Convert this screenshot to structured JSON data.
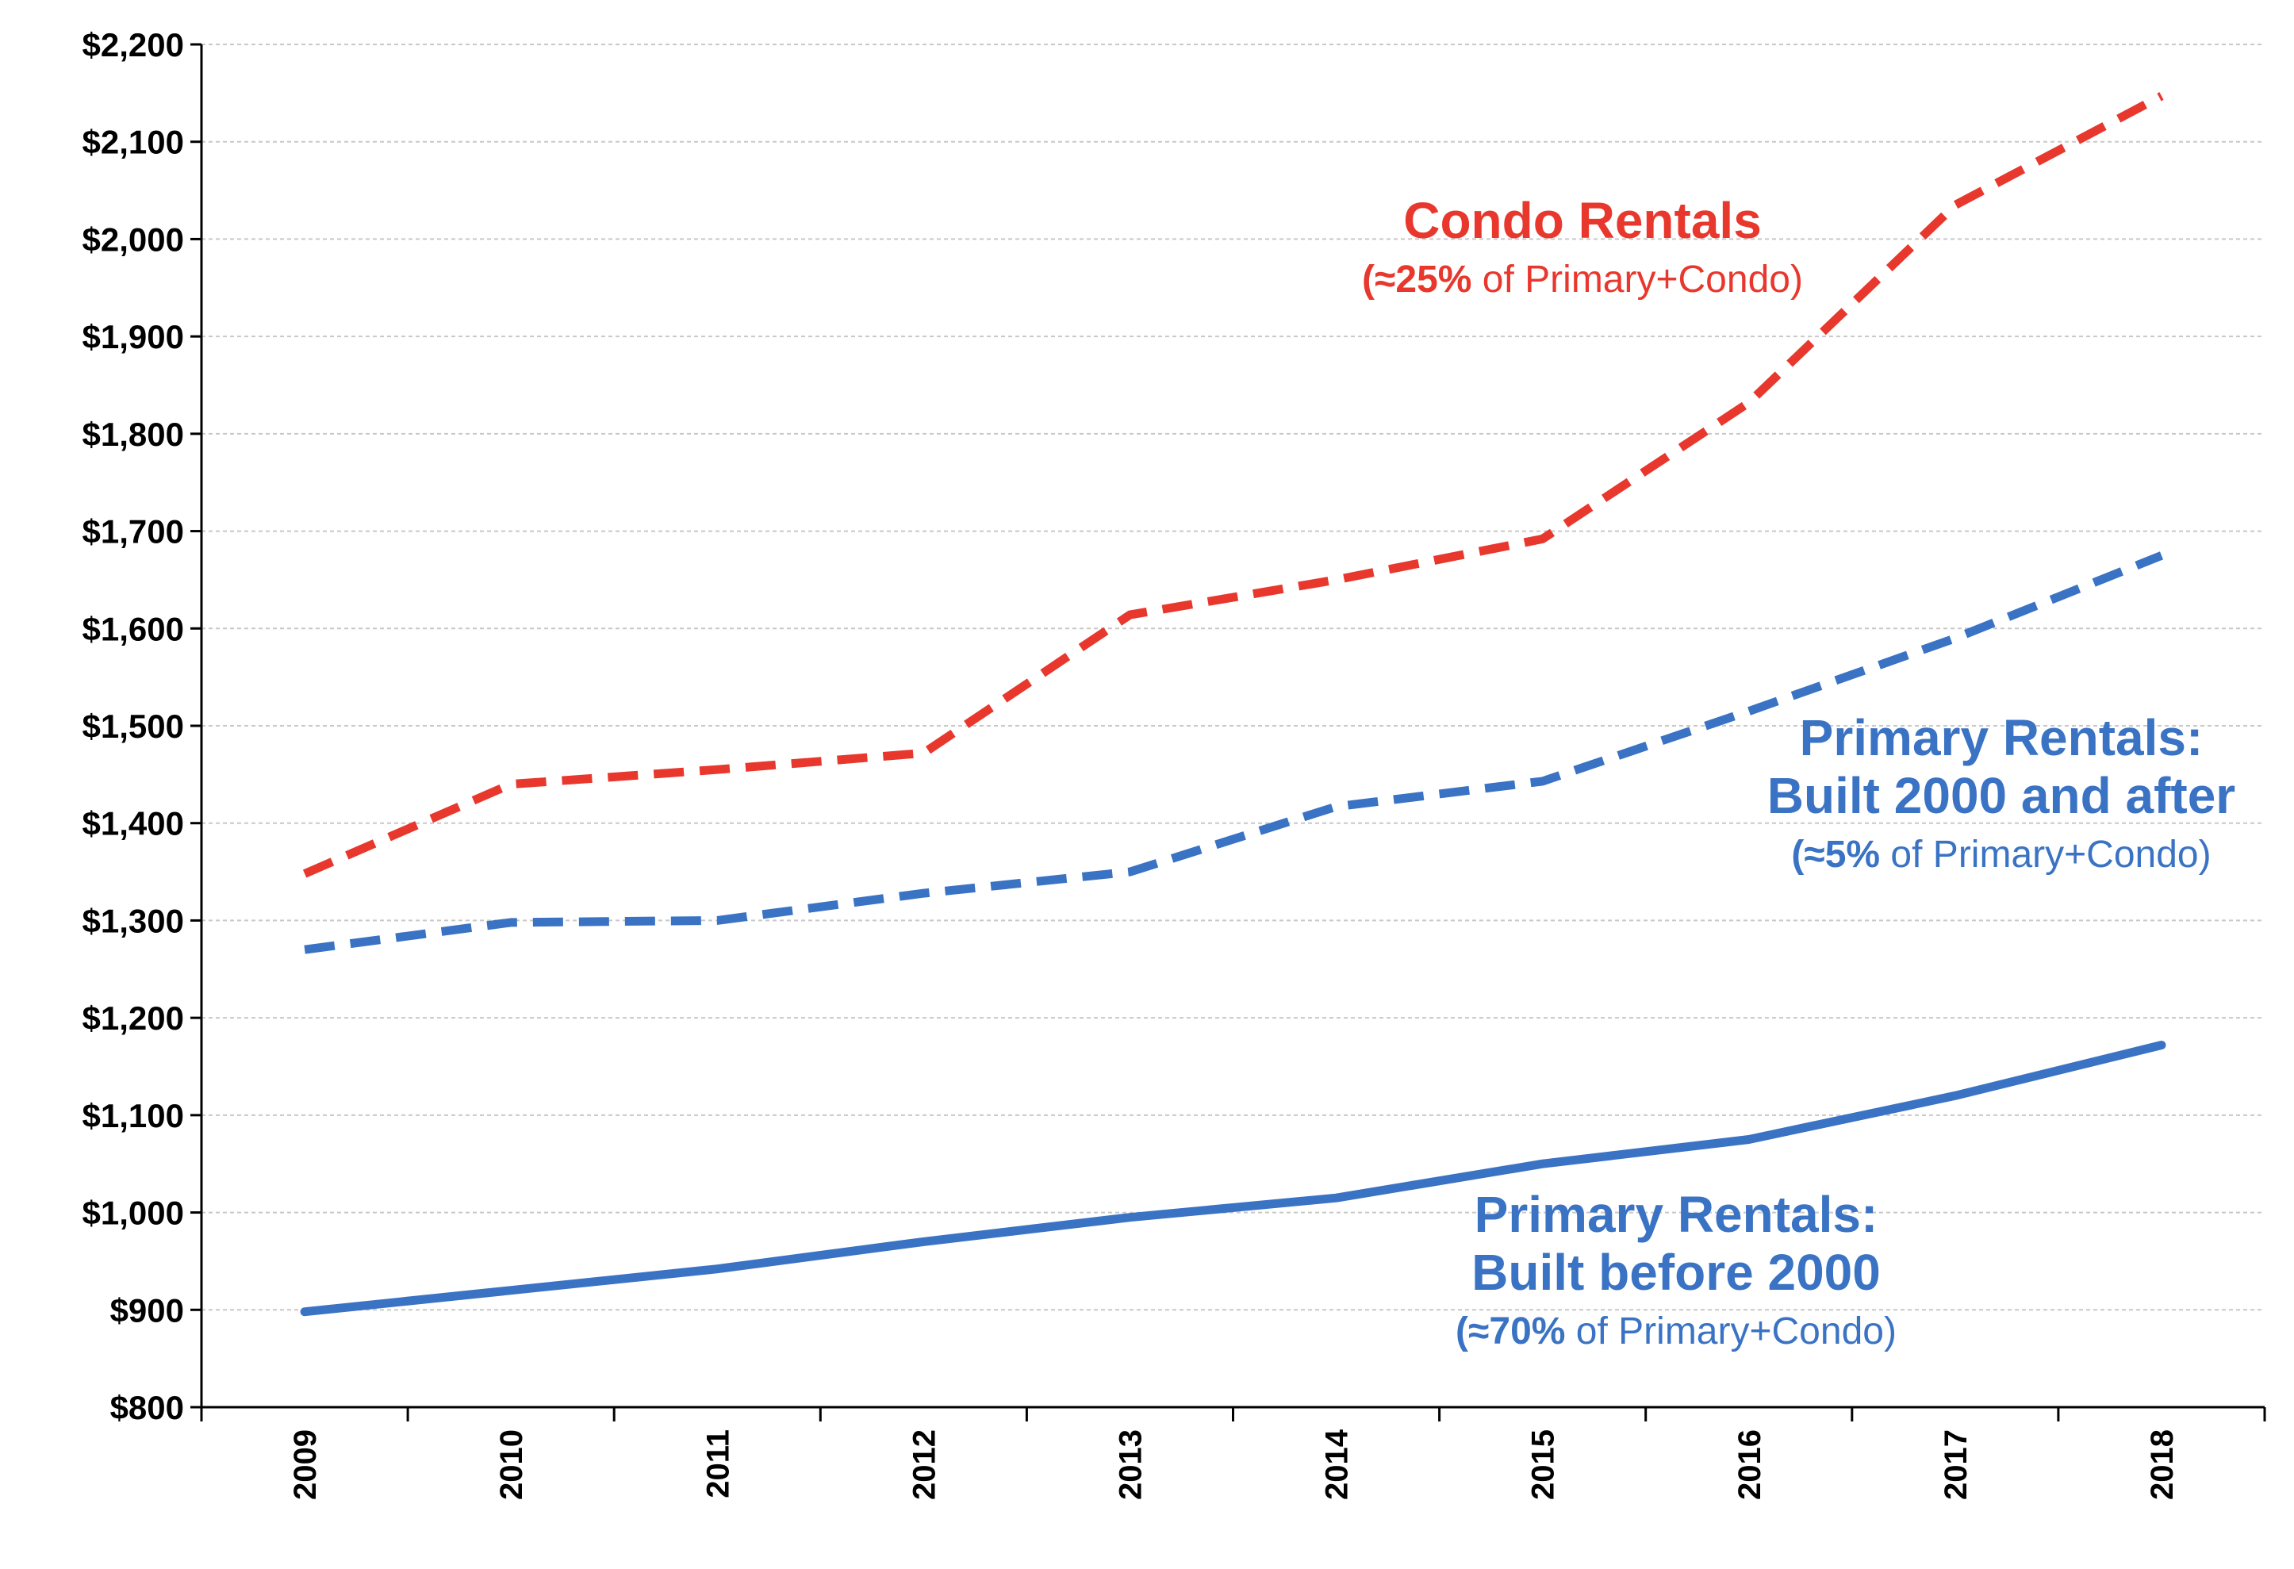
{
  "chart_data": {
    "type": "line",
    "x": [
      "2009",
      "2010",
      "2011",
      "2012",
      "2013",
      "2014",
      "2015",
      "2016",
      "2017",
      "2018"
    ],
    "ylim": [
      800,
      2200
    ],
    "yticks": [
      "$800",
      "$900",
      "$1,000",
      "$1,100",
      "$1,200",
      "$1,300",
      "$1,400",
      "$1,500",
      "$1,600",
      "$1,700",
      "$1,800",
      "$1,900",
      "$2,000",
      "$2,100",
      "$2,200"
    ],
    "grid": true,
    "legend": "none",
    "series": [
      {
        "key": "condo",
        "values": [
          1348,
          1440,
          1455,
          1472,
          1614,
          1650,
          1692,
          1832,
          2035,
          2147
        ],
        "color": "#e8382d",
        "dash": "dashed"
      },
      {
        "key": "primary_new",
        "values": [
          1270,
          1298,
          1300,
          1328,
          1350,
          1417,
          1443,
          1515,
          1590,
          1675
        ],
        "color": "#3a73c4",
        "dash": "dashed"
      },
      {
        "key": "primary_old",
        "values": [
          898,
          920,
          942,
          970,
          995,
          1015,
          1050,
          1075,
          1120,
          1172
        ],
        "color": "#3a73c4",
        "dash": "solid"
      }
    ],
    "annotations": [
      {
        "key": "condo",
        "lines": [
          "Condo Rentals"
        ],
        "sub_bold": "(≈25%",
        "sub_rest": " of Primary+Condo)",
        "color": "#e8382d"
      },
      {
        "key": "primary_new",
        "lines": [
          "Primary Rentals:",
          "Built 2000 and after"
        ],
        "sub_bold": "(≈5%",
        "sub_rest": " of Primary+Condo)",
        "color": "#3a73c4"
      },
      {
        "key": "primary_old",
        "lines": [
          "Primary Rentals:",
          "Built before 2000"
        ],
        "sub_bold": "(≈70%",
        "sub_rest": " of Primary+Condo)",
        "color": "#3a73c4"
      }
    ]
  }
}
